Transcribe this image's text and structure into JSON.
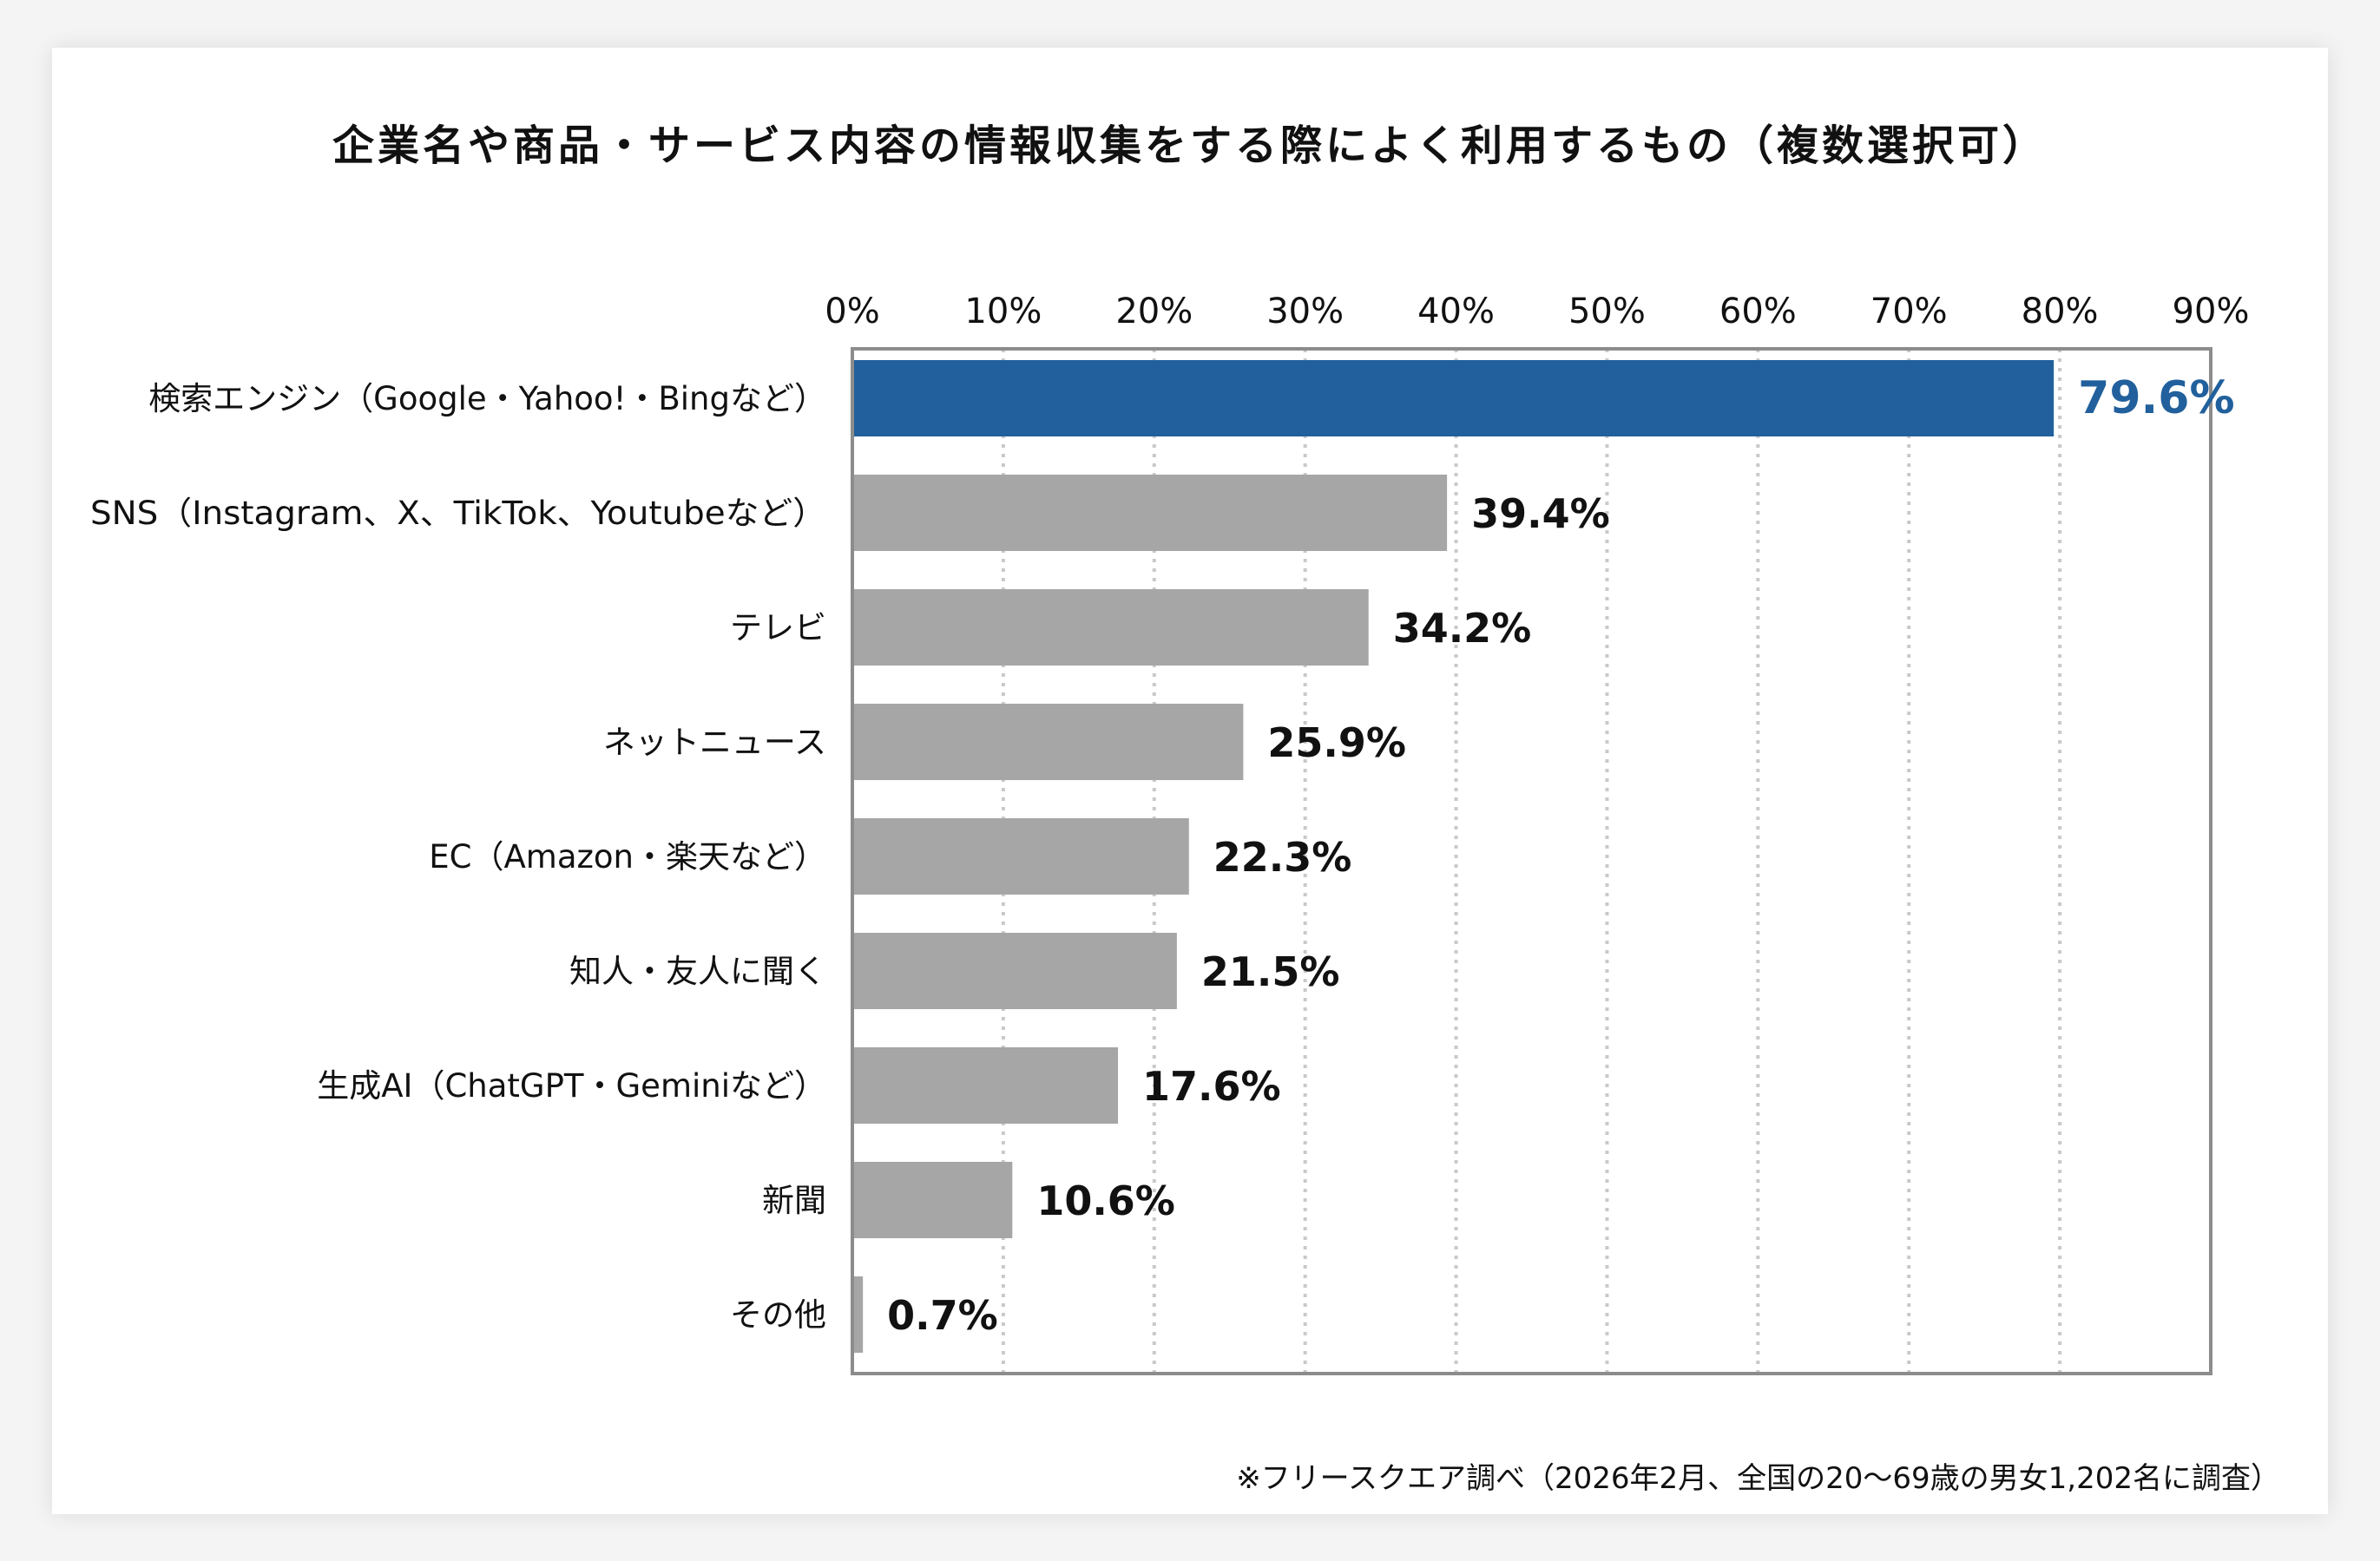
{
  "chart_data": {
    "type": "bar",
    "orientation": "horizontal",
    "title": "企業名や商品・サービス内容の情報収集をする際によく利用するもの（複数選択可）",
    "categories": [
      "検索エンジン（Google・Yahoo!・Bingなど）",
      "SNS（Instagram、X、TikTok、Youtubeなど）",
      "テレビ",
      "ネットニュース",
      "EC（Amazon・楽天など）",
      "知人・友人に聞く",
      "生成AI（ChatGPT・Geminiなど）",
      "新聞",
      "その他"
    ],
    "values": [
      79.6,
      39.4,
      34.2,
      25.9,
      22.3,
      21.5,
      17.6,
      10.6,
      0.7
    ],
    "value_labels": [
      "79.6%",
      "39.4%",
      "34.2%",
      "25.9%",
      "22.3%",
      "21.5%",
      "17.6%",
      "10.6%",
      "0.7%"
    ],
    "xlim": [
      0,
      90
    ],
    "ticks": [
      0,
      10,
      20,
      30,
      40,
      50,
      60,
      70,
      80,
      90
    ],
    "tick_labels": [
      "0%",
      "10%",
      "20%",
      "30%",
      "40%",
      "50%",
      "60%",
      "70%",
      "80%",
      "90%"
    ],
    "axis_position": "top",
    "grid": "vertical-dotted",
    "highlight_index": 0,
    "colors": {
      "highlight": "#21609c",
      "bar": "#a6a6a6",
      "grid": "#c9c9c9",
      "frame": "#8c8c8c"
    },
    "source_note": "※フリースクエア調べ（2026年2月、全国の20～69歳の男女1,202名に調査）"
  }
}
